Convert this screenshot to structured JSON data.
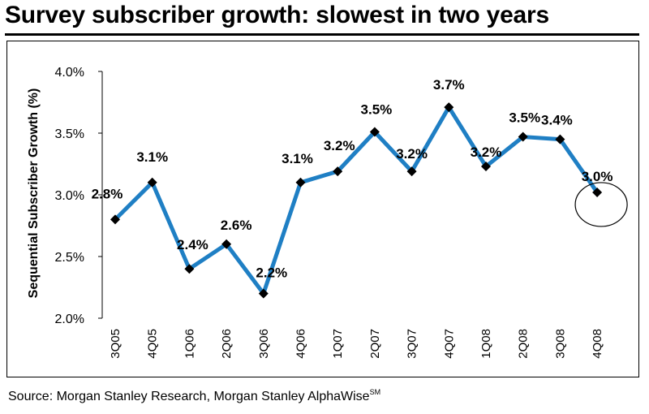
{
  "header": {
    "title": "Survey subscriber growth: slowest in two years"
  },
  "footer": {
    "source_text": "Source: Morgan Stanley Research, Morgan Stanley AlphaWise",
    "source_superscript": "SM"
  },
  "chart_data": {
    "type": "line",
    "title": "",
    "ylabel": "Sequential Subscriber Growth (%)",
    "xlabel": "",
    "categories": [
      "3Q05",
      "4Q05",
      "1Q06",
      "2Q06",
      "3Q06",
      "4Q06",
      "1Q07",
      "2Q07",
      "3Q07",
      "4Q07",
      "1Q08",
      "2Q08",
      "3Q08",
      "4Q08"
    ],
    "values": [
      2.8,
      3.1,
      2.4,
      2.6,
      2.2,
      3.1,
      3.19,
      3.51,
      3.19,
      3.71,
      3.23,
      3.47,
      3.45,
      3.02
    ],
    "data_labels": [
      "2.8%",
      "3.1%",
      "2.4%",
      "2.6%",
      "2.2%",
      "3.1%",
      "3.2%",
      "3.5%",
      "3.2%",
      "3.7%",
      "3.2%",
      "3.5%",
      "3.4%",
      "3.0%"
    ],
    "ylim": [
      2.0,
      4.0
    ],
    "yticks": [
      2.0,
      2.5,
      3.0,
      3.5,
      4.0
    ],
    "ytick_labels": [
      "2.0%",
      "2.5%",
      "3.0%",
      "3.5%",
      "4.0%"
    ],
    "grid": false,
    "legend": "none",
    "line_color": "#1f7fc4",
    "marker_color": "#000000",
    "highlight_category": "4Q08"
  }
}
